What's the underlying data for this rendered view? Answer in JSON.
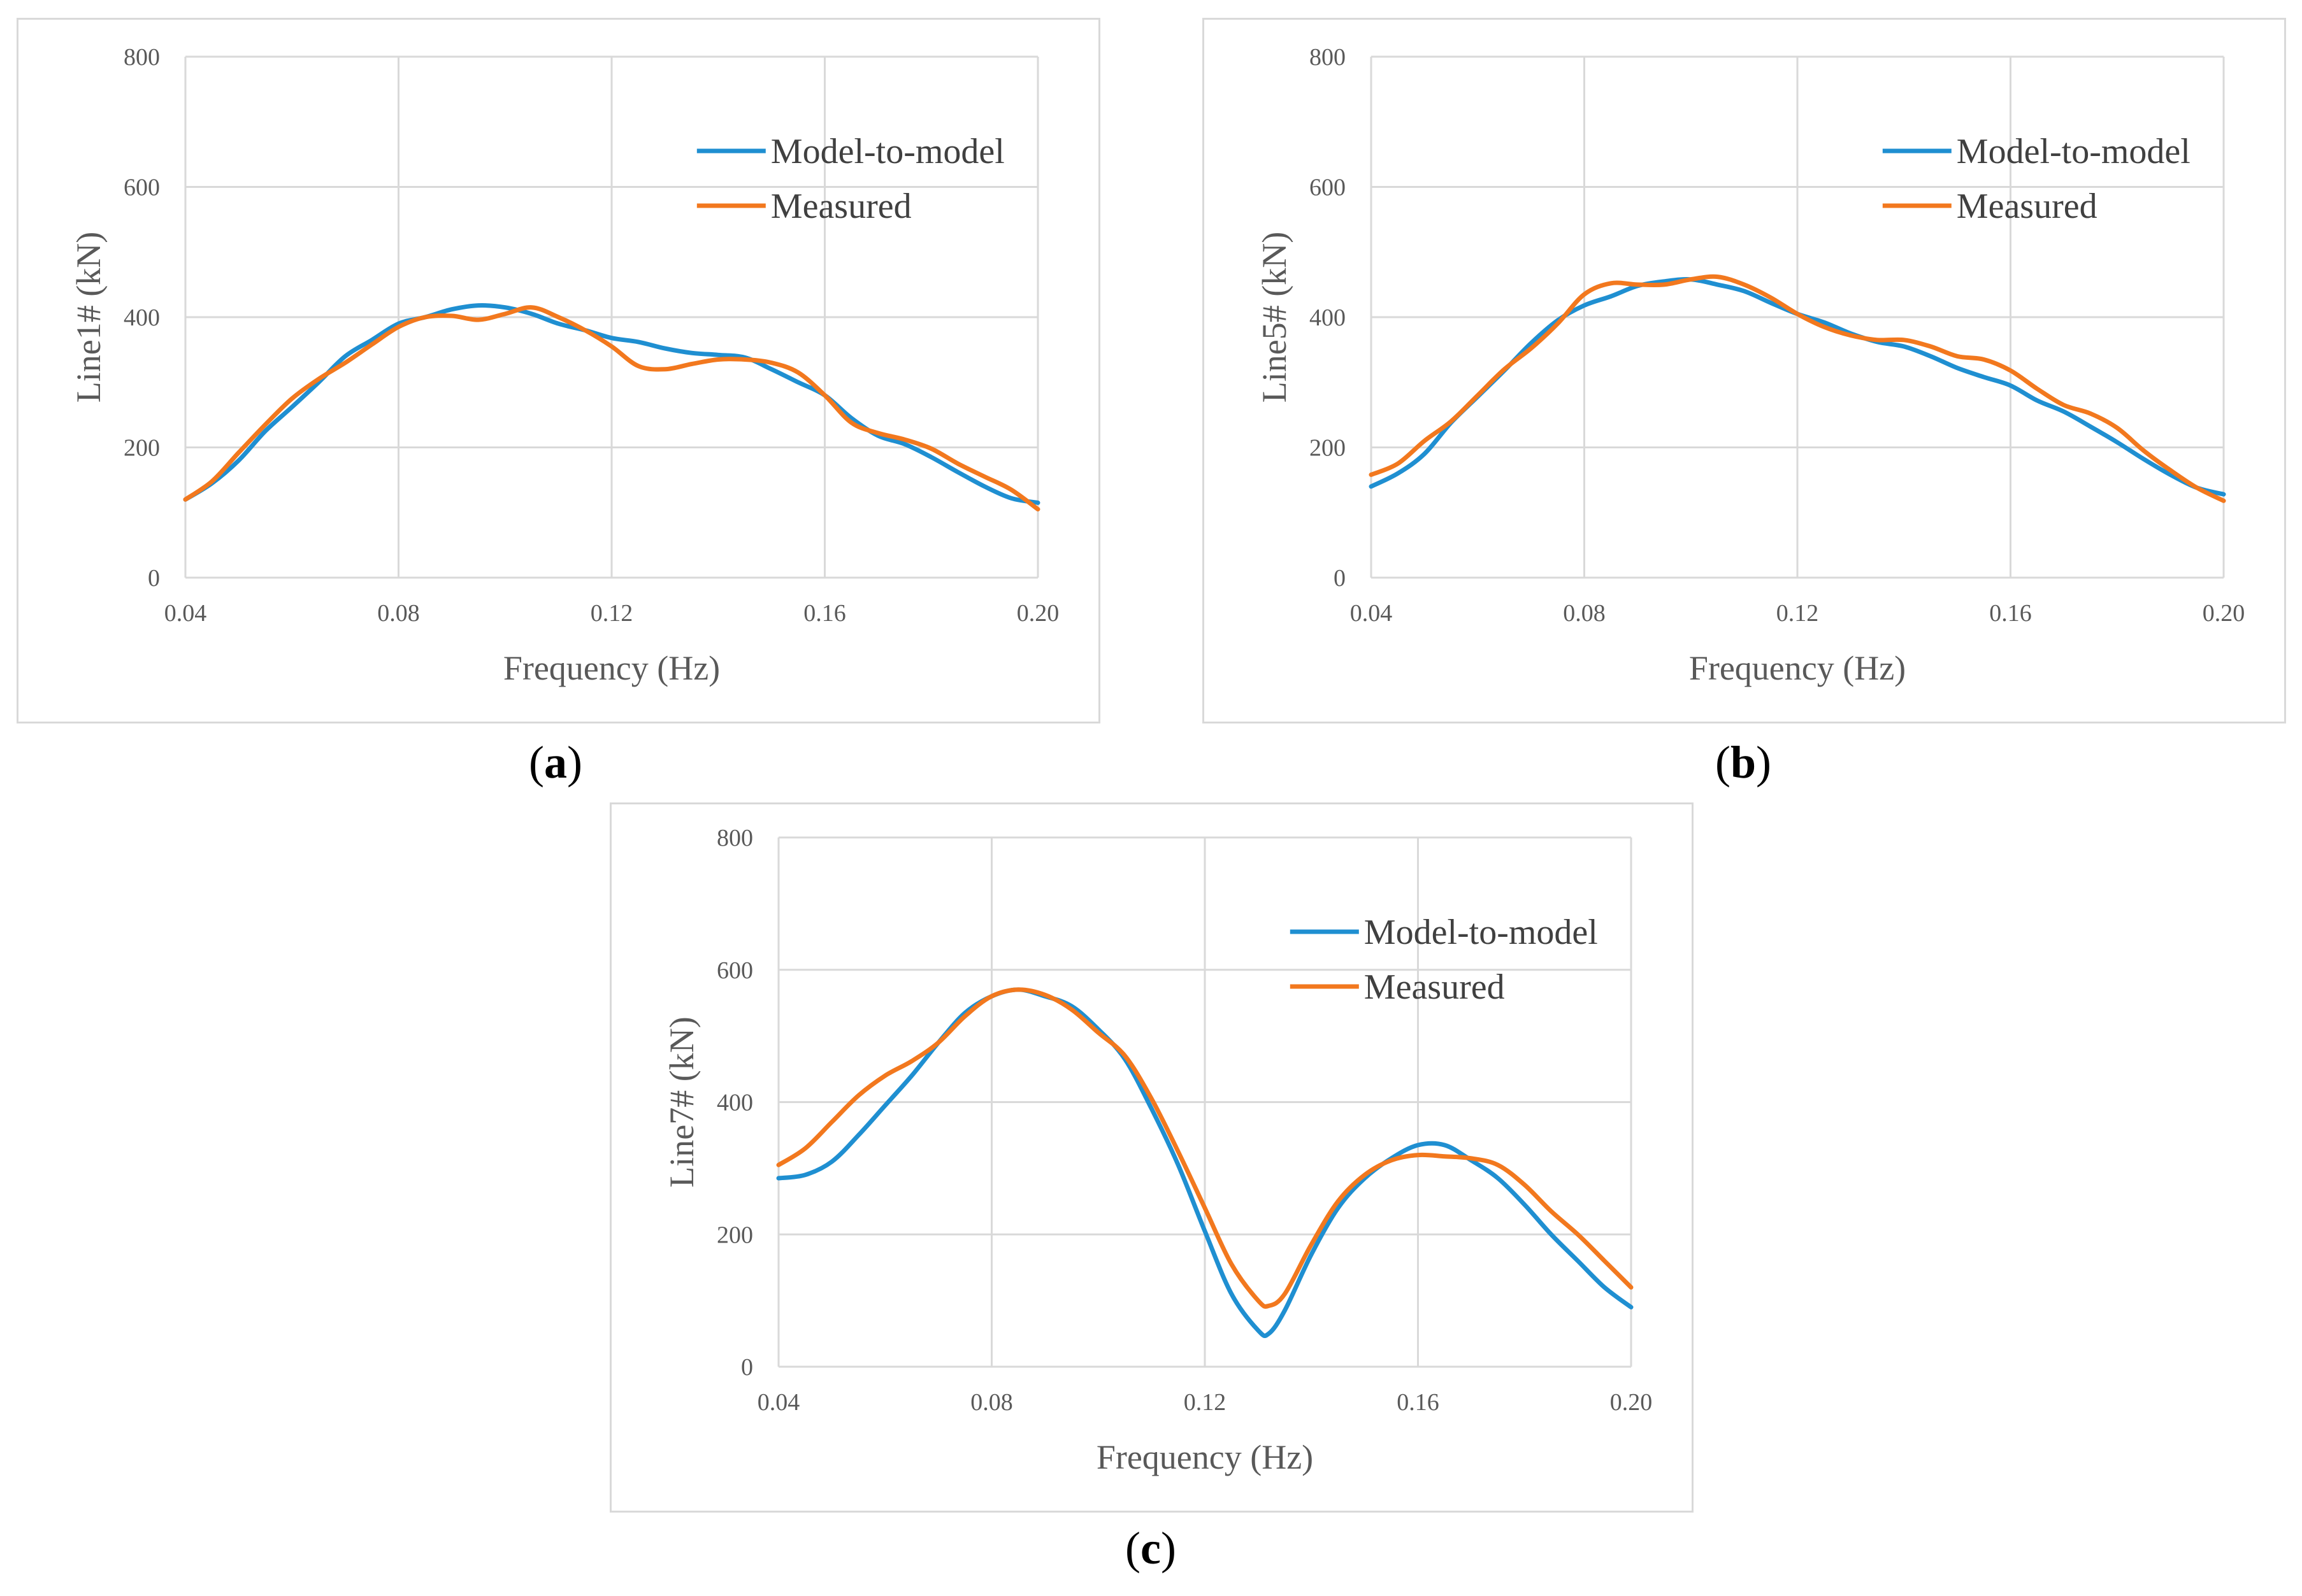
{
  "chart_data": [
    {
      "type": "line",
      "caption": "a",
      "xlabel": "Frequency (Hz)",
      "ylabel": "Line1# (kN)",
      "xlim": [
        0.04,
        0.2
      ],
      "ylim": [
        0,
        800
      ],
      "xticks": [
        "0.04",
        "0.08",
        "0.12",
        "0.16",
        "0.20"
      ],
      "yticks": [
        "0",
        "200",
        "400",
        "600",
        "800"
      ],
      "legend_position": "top-right",
      "colors": {
        "Model-to-model": "#1f8fd1",
        "Measured": "#f2781e"
      },
      "series": [
        {
          "name": "Model-to-model",
          "x": [
            0.04,
            0.045,
            0.05,
            0.055,
            0.06,
            0.065,
            0.07,
            0.075,
            0.08,
            0.085,
            0.09,
            0.095,
            0.1,
            0.105,
            0.11,
            0.115,
            0.12,
            0.125,
            0.13,
            0.135,
            0.14,
            0.145,
            0.15,
            0.155,
            0.16,
            0.165,
            0.17,
            0.175,
            0.18,
            0.185,
            0.19,
            0.195,
            0.2
          ],
          "y": [
            120,
            145,
            180,
            225,
            262,
            300,
            340,
            365,
            390,
            400,
            412,
            418,
            415,
            405,
            390,
            380,
            368,
            362,
            352,
            345,
            342,
            338,
            320,
            300,
            280,
            245,
            218,
            205,
            185,
            162,
            140,
            122,
            115
          ]
        },
        {
          "name": "Measured",
          "x": [
            0.04,
            0.045,
            0.05,
            0.055,
            0.06,
            0.065,
            0.07,
            0.075,
            0.08,
            0.085,
            0.09,
            0.095,
            0.1,
            0.105,
            0.11,
            0.115,
            0.12,
            0.125,
            0.13,
            0.135,
            0.14,
            0.145,
            0.15,
            0.155,
            0.16,
            0.165,
            0.17,
            0.175,
            0.18,
            0.185,
            0.19,
            0.195,
            0.2
          ],
          "y": [
            120,
            148,
            192,
            235,
            275,
            305,
            330,
            358,
            385,
            400,
            402,
            396,
            405,
            415,
            400,
            380,
            355,
            325,
            320,
            328,
            335,
            335,
            330,
            315,
            280,
            238,
            222,
            212,
            198,
            175,
            155,
            135,
            105
          ]
        }
      ]
    },
    {
      "type": "line",
      "caption": "b",
      "xlabel": "Frequency (Hz)",
      "ylabel": "Line5# (kN)",
      "xlim": [
        0.04,
        0.2
      ],
      "ylim": [
        0,
        800
      ],
      "xticks": [
        "0.04",
        "0.08",
        "0.12",
        "0.16",
        "0.20"
      ],
      "yticks": [
        "0",
        "200",
        "400",
        "600",
        "800"
      ],
      "legend_position": "top-right",
      "colors": {
        "Model-to-model": "#1f8fd1",
        "Measured": "#f2781e"
      },
      "series": [
        {
          "name": "Model-to-model",
          "x": [
            0.04,
            0.045,
            0.05,
            0.055,
            0.06,
            0.065,
            0.07,
            0.075,
            0.08,
            0.085,
            0.09,
            0.095,
            0.1,
            0.105,
            0.11,
            0.115,
            0.12,
            0.125,
            0.13,
            0.135,
            0.14,
            0.145,
            0.15,
            0.155,
            0.16,
            0.165,
            0.17,
            0.175,
            0.18,
            0.185,
            0.19,
            0.195,
            0.2
          ],
          "y": [
            140,
            160,
            190,
            238,
            278,
            318,
            360,
            395,
            418,
            432,
            448,
            455,
            458,
            450,
            440,
            422,
            405,
            392,
            375,
            362,
            355,
            340,
            322,
            308,
            295,
            272,
            255,
            232,
            208,
            182,
            158,
            138,
            128
          ]
        },
        {
          "name": "Measured",
          "x": [
            0.04,
            0.045,
            0.05,
            0.055,
            0.06,
            0.065,
            0.07,
            0.075,
            0.08,
            0.085,
            0.09,
            0.095,
            0.1,
            0.105,
            0.11,
            0.115,
            0.12,
            0.125,
            0.13,
            0.135,
            0.14,
            0.145,
            0.15,
            0.155,
            0.16,
            0.165,
            0.17,
            0.175,
            0.18,
            0.185,
            0.19,
            0.195,
            0.2
          ],
          "y": [
            158,
            175,
            210,
            240,
            280,
            320,
            352,
            390,
            435,
            452,
            450,
            450,
            458,
            462,
            450,
            430,
            405,
            385,
            372,
            365,
            365,
            355,
            340,
            335,
            318,
            290,
            265,
            252,
            230,
            195,
            165,
            138,
            118
          ]
        }
      ]
    },
    {
      "type": "line",
      "caption": "c",
      "xlabel": "Frequency (Hz)",
      "ylabel": "Line7# (kN)",
      "xlim": [
        0.04,
        0.2
      ],
      "ylim": [
        0,
        800
      ],
      "xticks": [
        "0.04",
        "0.08",
        "0.12",
        "0.16",
        "0.20"
      ],
      "yticks": [
        "0",
        "200",
        "400",
        "600",
        "800"
      ],
      "legend_position": "top-right",
      "colors": {
        "Model-to-model": "#1f8fd1",
        "Measured": "#f2781e"
      },
      "series": [
        {
          "name": "Model-to-model",
          "x": [
            0.04,
            0.045,
            0.05,
            0.055,
            0.06,
            0.065,
            0.07,
            0.075,
            0.08,
            0.085,
            0.09,
            0.095,
            0.1,
            0.105,
            0.11,
            0.115,
            0.12,
            0.125,
            0.13,
            0.132,
            0.135,
            0.14,
            0.145,
            0.15,
            0.155,
            0.16,
            0.165,
            0.17,
            0.175,
            0.18,
            0.185,
            0.19,
            0.195,
            0.2
          ],
          "y": [
            285,
            290,
            310,
            350,
            395,
            440,
            490,
            535,
            560,
            570,
            560,
            545,
            510,
            465,
            390,
            305,
            205,
            110,
            55,
            50,
            85,
            170,
            240,
            285,
            315,
            335,
            335,
            312,
            285,
            245,
            200,
            160,
            120,
            90
          ]
        },
        {
          "name": "Measured",
          "x": [
            0.04,
            0.045,
            0.05,
            0.055,
            0.06,
            0.065,
            0.07,
            0.075,
            0.08,
            0.085,
            0.09,
            0.095,
            0.1,
            0.105,
            0.11,
            0.115,
            0.12,
            0.125,
            0.13,
            0.132,
            0.135,
            0.14,
            0.145,
            0.15,
            0.155,
            0.16,
            0.165,
            0.17,
            0.175,
            0.18,
            0.185,
            0.19,
            0.195,
            0.2
          ],
          "y": [
            305,
            330,
            370,
            410,
            440,
            462,
            490,
            530,
            560,
            570,
            562,
            540,
            505,
            470,
            405,
            325,
            240,
            155,
            100,
            92,
            110,
            185,
            250,
            290,
            312,
            320,
            318,
            315,
            305,
            275,
            235,
            200,
            160,
            120
          ]
        }
      ]
    }
  ]
}
